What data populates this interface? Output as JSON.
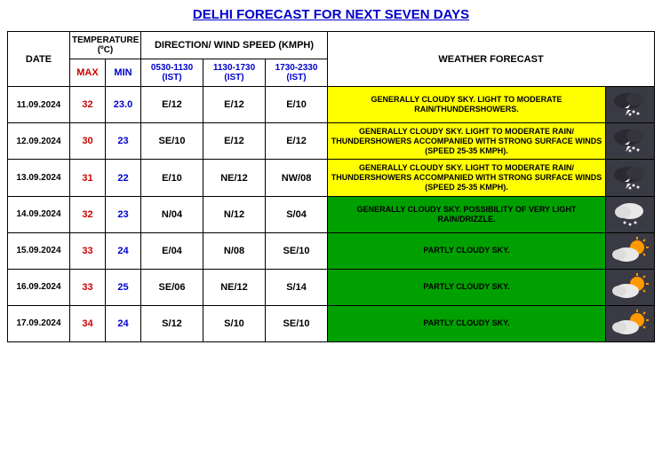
{
  "title": "DELHI FORECAST FOR NEXT SEVEN DAYS",
  "headers": {
    "date": "DATE",
    "temp": "TEMPERATURE (ºC)",
    "max": "MAX",
    "min": "MIN",
    "wind": "DIRECTION/ WIND SPEED (KMPH)",
    "w1": "0530-1130 (IST)",
    "w2": "1130-1730 (IST)",
    "w3": "1730-2330 (IST)",
    "forecast": "WEATHER FORECAST"
  },
  "rows": [
    {
      "date": "11.09.2024",
      "max": "32",
      "min": "23.0",
      "w1": "E/12",
      "w2": "E/12",
      "w3": "E/10",
      "forecast": "GENERALLY CLOUDY SKY. LIGHT TO MODERATE RAIN/THUNDERSHOWERS.",
      "bg": "yellow",
      "icon": "thunder"
    },
    {
      "date": "12.09.2024",
      "max": "30",
      "min": "23",
      "w1": "SE/10",
      "w2": "E/12",
      "w3": "E/12",
      "forecast": "GENERALLY CLOUDY SKY. LIGHT TO MODERATE RAIN/ THUNDERSHOWERS ACCOMPANIED WITH STRONG SURFACE WINDS (SPEED 25-35 KMPH).",
      "bg": "yellow",
      "icon": "thunder"
    },
    {
      "date": "13.09.2024",
      "max": "31",
      "min": "22",
      "w1": "E/10",
      "w2": "NE/12",
      "w3": "NW/08",
      "forecast": "GENERALLY CLOUDY SKY. LIGHT TO MODERATE RAIN/ THUNDERSHOWERS ACCOMPANIED WITH STRONG SURFACE WINDS (SPEED 25-35 KMPH).",
      "bg": "yellow",
      "icon": "thunder"
    },
    {
      "date": "14.09.2024",
      "max": "32",
      "min": "23",
      "w1": "N/04",
      "w2": "N/12",
      "w3": "S/04",
      "forecast": "GENERALLY CLOUDY SKY. POSSIBILITY OF VERY LIGHT RAIN/DRIZZLE.",
      "bg": "green",
      "icon": "rain"
    },
    {
      "date": "15.09.2024",
      "max": "33",
      "min": "24",
      "w1": "E/04",
      "w2": "N/08",
      "w3": "SE/10",
      "forecast": "PARTLY CLOUDY SKY.",
      "bg": "green",
      "icon": "partly"
    },
    {
      "date": "16.09.2024",
      "max": "33",
      "min": "25",
      "w1": "SE/06",
      "w2": "NE/12",
      "w3": "S/14",
      "forecast": "PARTLY CLOUDY SKY.",
      "bg": "green",
      "icon": "partly"
    },
    {
      "date": "17.09.2024",
      "max": "34",
      "min": "24",
      "w1": "S/12",
      "w2": "S/10",
      "w3": "SE/10",
      "forecast": "PARTLY CLOUDY SKY.",
      "bg": "green",
      "icon": "partly"
    }
  ],
  "colors": {
    "yellow": "#ffff00",
    "green": "#00a000",
    "iconbg": "#3a3a44",
    "max": "#cc0000",
    "min": "#0000cc",
    "title": "#0000cc"
  }
}
